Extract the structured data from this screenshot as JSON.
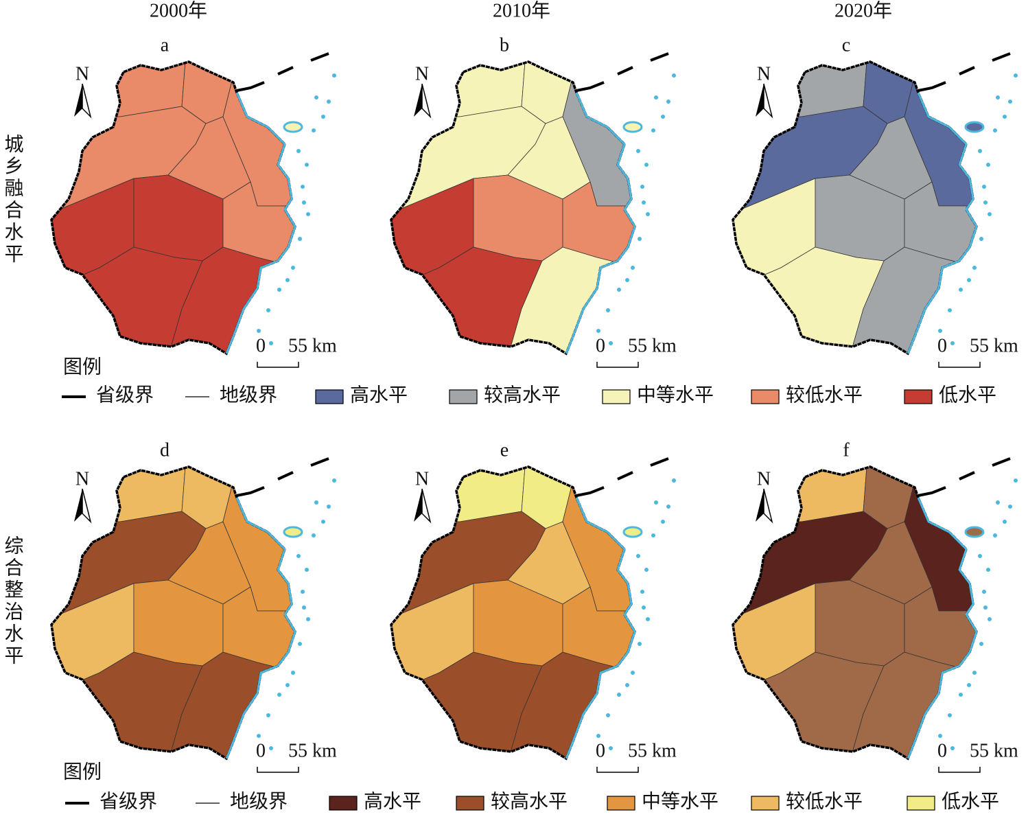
{
  "columns": [
    "2000年",
    "2010年",
    "2020年"
  ],
  "north": "N",
  "scale": {
    "zero": "0",
    "length": "55 km"
  },
  "rows": [
    {
      "label": "城乡融合水平",
      "legend_title": "图例",
      "boundaries": [
        "省级界",
        "地级界"
      ],
      "levels": [
        {
          "name": "高水平",
          "color": "#5b6a9c"
        },
        {
          "name": "较高水平",
          "color": "#a3a6a8"
        },
        {
          "name": "中等水平",
          "color": "#f6f3b8"
        },
        {
          "name": "较低水平",
          "color": "#e98a68"
        },
        {
          "name": "低水平",
          "color": "#c43c32"
        }
      ],
      "panels": [
        {
          "letter": "a",
          "fills": [
            "#e98a68",
            "#e98a68",
            "#e98a68",
            "#e98a68",
            "#e98a68",
            "#c43c32",
            "#c43c32",
            "#e98a68",
            "#c43c32",
            "#c43c32",
            "#f6f3b8"
          ]
        },
        {
          "letter": "b",
          "fills": [
            "#f6f3b8",
            "#f6f3b8",
            "#f6f3b8",
            "#f6f3b8",
            "#a3a6a8",
            "#c43c32",
            "#e98a68",
            "#e98a68",
            "#c43c32",
            "#f6f3b8",
            "#f6f3b8"
          ]
        },
        {
          "letter": "c",
          "fills": [
            "#a3a6a8",
            "#5b6a9c",
            "#5b6a9c",
            "#a3a6a8",
            "#5b6a9c",
            "#f6f3b8",
            "#a3a6a8",
            "#a3a6a8",
            "#f6f3b8",
            "#a3a6a8",
            "#5b6a9c"
          ]
        }
      ]
    },
    {
      "label": "综合整治水平",
      "legend_title": "图例",
      "boundaries": [
        "省级界",
        "地级界"
      ],
      "levels": [
        {
          "name": "高水平",
          "color": "#5a231e"
        },
        {
          "name": "较高水平",
          "color": "#9a4f2a"
        },
        {
          "name": "中等水平",
          "color": "#e3953f"
        },
        {
          "name": "较低水平",
          "color": "#edb961"
        },
        {
          "name": "低水平",
          "color": "#f2ec86"
        }
      ],
      "panels": [
        {
          "letter": "d",
          "fills": [
            "#edb961",
            "#edb961",
            "#9a4f2a",
            "#e3953f",
            "#e3953f",
            "#edb961",
            "#e3953f",
            "#e3953f",
            "#9a4f2a",
            "#9a4f2a",
            "#f2ec86"
          ]
        },
        {
          "letter": "e",
          "fills": [
            "#f2ec86",
            "#f2ec86",
            "#9a4f2a",
            "#edb961",
            "#e3953f",
            "#edb961",
            "#e3953f",
            "#e3953f",
            "#9a4f2a",
            "#9a4f2a",
            "#f2ec86"
          ]
        },
        {
          "letter": "f",
          "fills": [
            "#edb961",
            "#a06a48",
            "#5a231e",
            "#a06a48",
            "#5a231e",
            "#edb961",
            "#a06a48",
            "#a06a48",
            "#a06a48",
            "#a06a48",
            "#a06a48"
          ]
        }
      ]
    }
  ]
}
